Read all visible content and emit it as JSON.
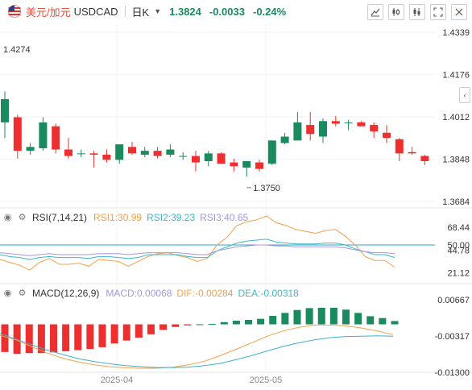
{
  "header": {
    "pair_name": "美元/加元",
    "pair_code": "USDCAD",
    "period": "日K",
    "last_price": "1.3824",
    "change": "-0.0033",
    "change_pct": "-0.24%"
  },
  "colors": {
    "up": "#1a8a5f",
    "down": "#ee2f2f",
    "orange": "#f5a04a",
    "cyan": "#3bb8c8",
    "purple": "#a796e0",
    "ma_blue": "#3fb0d0"
  },
  "icons": [
    "flag-icon",
    "drawing-tool-icon",
    "candle-type-icon",
    "indicator-icon",
    "fullscreen-icon",
    "close-icon",
    "chevron-left-icon",
    "eye-icon",
    "settings-icon"
  ],
  "indicators": {
    "rsi": {
      "name": "RSI(7,14,21)",
      "rsi1": "RSI1:30.99",
      "rsi2": "RSI2:39.23",
      "rsi3": "RSI3:40.65"
    },
    "macd": {
      "name": "MACD(12,26,9)",
      "macd": "MACD:0.00068",
      "dif": "DIF:-0.00284",
      "dea": "DEA:-0.00318"
    }
  },
  "chart_data": [
    {
      "type": "candlestick",
      "price_ticks": [
        "1.4339",
        "1.4176",
        "1.4012",
        "1.3848",
        "1.3684"
      ],
      "ylim": [
        1.3684,
        1.4339
      ],
      "annotations": [
        {
          "text": "1.4274",
          "value": 1.4274
        },
        {
          "text": "1.3750",
          "value": 1.375
        }
      ],
      "x_labels": [
        "2025-04",
        "2025-05"
      ],
      "candles": [
        {
          "o": 1.399,
          "h": 1.411,
          "l": 1.393,
          "c": 1.408
        },
        {
          "o": 1.401,
          "h": 1.402,
          "l": 1.385,
          "c": 1.388
        },
        {
          "o": 1.388,
          "h": 1.391,
          "l": 1.3865,
          "c": 1.3895
        },
        {
          "o": 1.389,
          "h": 1.401,
          "l": 1.388,
          "c": 1.399
        },
        {
          "o": 1.3975,
          "h": 1.3985,
          "l": 1.387,
          "c": 1.3885
        },
        {
          "o": 1.3885,
          "h": 1.393,
          "l": 1.385,
          "c": 1.386
        },
        {
          "o": 1.387,
          "h": 1.3885,
          "l": 1.3855,
          "c": 1.387
        },
        {
          "o": 1.387,
          "h": 1.388,
          "l": 1.3815,
          "c": 1.3865
        },
        {
          "o": 1.3865,
          "h": 1.3885,
          "l": 1.3835,
          "c": 1.3845
        },
        {
          "o": 1.3845,
          "h": 1.3905,
          "l": 1.383,
          "c": 1.3905
        },
        {
          "o": 1.3895,
          "h": 1.3915,
          "l": 1.3865,
          "c": 1.387
        },
        {
          "o": 1.3865,
          "h": 1.3895,
          "l": 1.3855,
          "c": 1.388
        },
        {
          "o": 1.388,
          "h": 1.3895,
          "l": 1.385,
          "c": 1.386
        },
        {
          "o": 1.3865,
          "h": 1.3905,
          "l": 1.3855,
          "c": 1.3885
        },
        {
          "o": 1.386,
          "h": 1.3875,
          "l": 1.3845,
          "c": 1.386
        },
        {
          "o": 1.386,
          "h": 1.388,
          "l": 1.38,
          "c": 1.3835
        },
        {
          "o": 1.384,
          "h": 1.388,
          "l": 1.382,
          "c": 1.387
        },
        {
          "o": 1.387,
          "h": 1.3875,
          "l": 1.383,
          "c": 1.383
        },
        {
          "o": 1.3835,
          "h": 1.385,
          "l": 1.38,
          "c": 1.382
        },
        {
          "o": 1.3815,
          "h": 1.384,
          "l": 1.378,
          "c": 1.384
        },
        {
          "o": 1.3835,
          "h": 1.3845,
          "l": 1.38,
          "c": 1.381
        },
        {
          "o": 1.383,
          "h": 1.392,
          "l": 1.3825,
          "c": 1.392
        },
        {
          "o": 1.391,
          "h": 1.395,
          "l": 1.3905,
          "c": 1.3935
        },
        {
          "o": 1.392,
          "h": 1.403,
          "l": 1.392,
          "c": 1.399
        },
        {
          "o": 1.398,
          "h": 1.403,
          "l": 1.392,
          "c": 1.3945
        },
        {
          "o": 1.3935,
          "h": 1.4005,
          "l": 1.391,
          "c": 1.3995
        },
        {
          "o": 1.3995,
          "h": 1.4015,
          "l": 1.3975,
          "c": 1.3985
        },
        {
          "o": 1.399,
          "h": 1.4,
          "l": 1.396,
          "c": 1.399
        },
        {
          "o": 1.399,
          "h": 1.3995,
          "l": 1.3975,
          "c": 1.3975
        },
        {
          "o": 1.398,
          "h": 1.399,
          "l": 1.393,
          "c": 1.3955
        },
        {
          "o": 1.395,
          "h": 1.398,
          "l": 1.391,
          "c": 1.393
        },
        {
          "o": 1.3925,
          "h": 1.393,
          "l": 1.384,
          "c": 1.387
        },
        {
          "o": 1.3875,
          "h": 1.3895,
          "l": 1.3865,
          "c": 1.387
        },
        {
          "o": 1.386,
          "h": 1.3865,
          "l": 1.3825,
          "c": 1.384
        }
      ]
    },
    {
      "type": "line",
      "name": "RSI",
      "ticks": [
        "68.44",
        "50.00",
        "44.78",
        "21.12"
      ],
      "ylim": [
        10,
        85
      ],
      "reference": 50,
      "series": [
        {
          "name": "RSI1",
          "values": [
            35,
            32,
            29,
            24,
            32,
            36,
            30,
            30,
            31,
            28,
            35,
            34,
            33,
            28,
            33,
            38,
            41,
            42,
            39,
            37,
            33,
            36,
            50,
            58,
            70,
            74,
            76,
            80,
            73,
            70,
            66,
            64,
            62,
            65,
            66,
            59,
            50,
            38,
            34,
            34,
            27
          ]
        },
        {
          "name": "RSI2",
          "values": [
            40,
            38,
            37,
            35,
            37,
            38,
            37,
            37,
            37,
            36,
            38,
            38,
            37,
            36,
            37,
            40,
            40,
            40,
            40,
            38,
            37,
            37,
            44,
            48,
            52,
            54,
            55,
            56,
            53,
            52,
            51,
            51,
            51,
            52,
            52,
            50,
            46,
            43,
            40,
            40,
            37
          ]
        },
        {
          "name": "RSI3",
          "values": [
            42,
            41,
            40,
            39,
            40,
            41,
            40,
            40,
            40,
            40,
            41,
            41,
            41,
            40,
            41,
            42,
            42,
            42,
            42,
            41,
            40,
            40,
            44,
            46,
            48,
            49,
            50,
            50,
            49,
            49,
            48,
            48,
            48,
            48,
            48,
            47,
            45,
            43,
            42,
            42,
            41
          ]
        }
      ]
    },
    {
      "type": "bar",
      "name": "MACD",
      "ticks": [
        "0.00667",
        "-0.00317",
        "-0.01300"
      ],
      "ylim": [
        -0.013,
        0.00667
      ],
      "histogram": [
        -0.0075,
        -0.008,
        -0.0078,
        -0.0078,
        -0.0076,
        -0.0073,
        -0.007,
        -0.0067,
        -0.0062,
        -0.0052,
        -0.0044,
        -0.0036,
        -0.0027,
        -0.0015,
        -0.0007,
        -0.0003,
        0.0,
        0.0001,
        0.0006,
        0.001,
        0.0012,
        0.0015,
        0.0023,
        0.0031,
        0.0039,
        0.0044,
        0.0045,
        0.0045,
        0.004,
        0.0031,
        0.0022,
        0.0017,
        0.0009
      ],
      "series": [
        {
          "name": "DIF",
          "values": [
            -0.003,
            -0.0042,
            -0.006,
            -0.0078,
            -0.0092,
            -0.0102,
            -0.011,
            -0.0115,
            -0.0118,
            -0.0119,
            -0.0119,
            -0.0116,
            -0.011,
            -0.01,
            -0.0085,
            -0.0068,
            -0.005,
            -0.0032,
            -0.0018,
            -0.0008,
            -0.0002,
            -0.0002,
            -0.0004,
            -0.001,
            -0.0018,
            -0.0028
          ]
        },
        {
          "name": "DEA",
          "values": [
            -0.0025,
            -0.004,
            -0.0055,
            -0.007,
            -0.0082,
            -0.0093,
            -0.0101,
            -0.0107,
            -0.0112,
            -0.0115,
            -0.0117,
            -0.0117,
            -0.0116,
            -0.0112,
            -0.0106,
            -0.0096,
            -0.0085,
            -0.0072,
            -0.006,
            -0.005,
            -0.0042,
            -0.0036,
            -0.0033,
            -0.0032,
            -0.0031,
            -0.0032
          ]
        }
      ]
    }
  ]
}
